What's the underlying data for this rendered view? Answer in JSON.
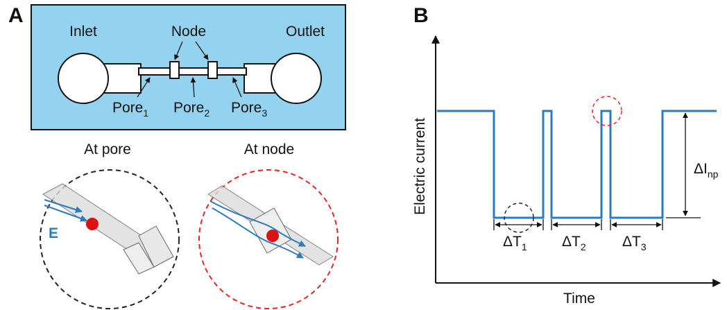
{
  "panel_a": {
    "label": "A",
    "chip": {
      "inlet": "Inlet",
      "node": "Node",
      "outlet": "Outlet",
      "pores": [
        {
          "text": "Pore",
          "sub": "1"
        },
        {
          "text": "Pore",
          "sub": "2"
        },
        {
          "text": "Pore",
          "sub": "3"
        }
      ]
    },
    "insets": [
      {
        "title": "At pore",
        "field": "E"
      },
      {
        "title": "At node"
      }
    ]
  },
  "panel_b": {
    "label": "B",
    "y_axis": "Electric current",
    "x_axis": "Time",
    "durations": [
      {
        "text": "ΔT",
        "sub": "1"
      },
      {
        "text": "ΔT",
        "sub": "2"
      },
      {
        "text": "ΔT",
        "sub": "3"
      }
    ],
    "amplitude": {
      "text": "ΔI",
      "sub": "np"
    }
  }
}
